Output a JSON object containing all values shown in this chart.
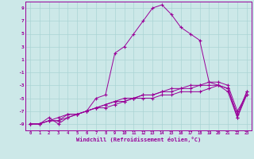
{
  "xlabel": "Windchill (Refroidissement éolien,°C)",
  "line_color": "#990099",
  "bg_color": "#cce8e8",
  "grid_color": "#aad4d4",
  "xlim": [
    -0.5,
    23.5
  ],
  "ylim": [
    -10,
    10
  ],
  "xticks": [
    0,
    1,
    2,
    3,
    4,
    5,
    6,
    7,
    8,
    9,
    10,
    11,
    12,
    13,
    14,
    15,
    16,
    17,
    18,
    19,
    20,
    21,
    22,
    23
  ],
  "yticks": [
    -9,
    -7,
    -5,
    -3,
    -1,
    1,
    3,
    5,
    7,
    9
  ],
  "series1_x": [
    0,
    1,
    2,
    3,
    4,
    5,
    6,
    7,
    8,
    9,
    10,
    11,
    12,
    13,
    14,
    15,
    16,
    17,
    18,
    19,
    20,
    21,
    22,
    23
  ],
  "series1_y": [
    -9,
    -9,
    -8,
    -9,
    -8,
    -7.5,
    -7,
    -5,
    -4.5,
    2,
    3,
    5,
    7,
    9,
    9.5,
    8,
    6,
    5,
    4,
    -2.5,
    -3,
    -4,
    -8,
    -4.5
  ],
  "series2_x": [
    0,
    1,
    2,
    3,
    4,
    5,
    6,
    7,
    8,
    9,
    10,
    11,
    12,
    13,
    14,
    15,
    16,
    17,
    18,
    19,
    20,
    21,
    22,
    23
  ],
  "series2_y": [
    -9,
    -9,
    -8.5,
    -8.5,
    -7.5,
    -7.5,
    -7,
    -6.5,
    -6.5,
    -6,
    -5.5,
    -5,
    -5,
    -5,
    -4.5,
    -4.5,
    -4,
    -4,
    -4,
    -3.5,
    -3,
    -3.5,
    -8,
    -4
  ],
  "series3_x": [
    0,
    1,
    2,
    3,
    4,
    5,
    6,
    7,
    8,
    9,
    10,
    11,
    12,
    13,
    14,
    15,
    16,
    17,
    18,
    19,
    20,
    21,
    22,
    23
  ],
  "series3_y": [
    -9,
    -9,
    -8.5,
    -8,
    -7.5,
    -7.5,
    -7,
    -6.5,
    -6,
    -5.5,
    -5.5,
    -5,
    -4.5,
    -4.5,
    -4,
    -4,
    -3.5,
    -3.5,
    -3,
    -3,
    -3,
    -3.5,
    -7.5,
    -4
  ],
  "series4_x": [
    0,
    1,
    2,
    3,
    4,
    5,
    6,
    7,
    8,
    9,
    10,
    11,
    12,
    13,
    14,
    15,
    16,
    17,
    18,
    19,
    20,
    21,
    22,
    23
  ],
  "series4_y": [
    -9,
    -9,
    -8.5,
    -8.5,
    -8,
    -7.5,
    -7,
    -6.5,
    -6,
    -5.5,
    -5,
    -5,
    -4.5,
    -4.5,
    -4,
    -3.5,
    -3.5,
    -3,
    -3,
    -2.5,
    -2.5,
    -3,
    -7,
    -4.5
  ]
}
